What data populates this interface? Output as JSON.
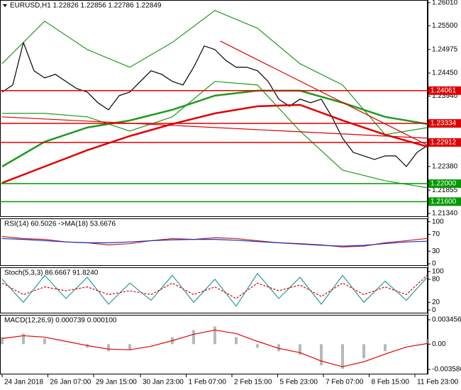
{
  "chart_data": [
    {
      "type": "line",
      "title": "EURUSD,H1 1.22826 1.22856 1.22786 1.22849",
      "xlim": [
        -0.2,
        40
      ],
      "ylim": [
        1.2126,
        1.2607
      ],
      "yticks": [
        {
          "value": 1.2601,
          "label": "1.26010"
        },
        {
          "value": 1.255,
          "label": "1.25500"
        },
        {
          "value": 1.24975,
          "label": "1.24975"
        },
        {
          "value": 1.2445,
          "label": "1.24450"
        },
        {
          "value": 1.2394,
          "label": "1.23940"
        },
        {
          "value": 1.2238,
          "label": "1.22380"
        },
        {
          "value": 1.21855,
          "label": "1.21855"
        },
        {
          "value": 1.2134,
          "label": "1.21340"
        }
      ],
      "series": [
        {
          "color": "#000000",
          "values": [
            1.24029,
            1.24186,
            1.25129,
            1.24501,
            1.24343,
            1.24422,
            1.24265,
            1.24108,
            1.24029,
            1.23793,
            1.23636,
            1.2395,
            1.24029,
            1.24265,
            1.24501,
            1.24422,
            1.24265,
            1.24186,
            1.24579,
            1.25051,
            1.24972,
            1.24736,
            1.24579,
            1.24579,
            1.24501,
            1.24265,
            1.23872,
            1.23714,
            1.23872,
            1.23793,
            1.23872,
            1.23479,
            1.23007,
            1.22692,
            1.22614,
            1.22535,
            1.22614,
            1.22614,
            1.22378,
            1.22692,
            1.22849
          ]
        },
        {
          "color": "#1f9a1f",
          "x": [
            0,
            4,
            8,
            12,
            16,
            20,
            24,
            28,
            32,
            36,
            40
          ],
          "values": [
            1.24658,
            1.25601,
            1.24972,
            1.24579,
            1.2513,
            1.25837,
            1.25444,
            1.24658,
            1.24186,
            1.23085,
            1.23243
          ]
        },
        {
          "color": "#1f9a1f",
          "x": [
            0,
            4,
            8,
            12,
            16,
            20,
            24,
            28,
            32,
            36,
            40
          ],
          "values": [
            1.23557,
            1.23557,
            1.23479,
            1.23164,
            1.23479,
            1.24265,
            1.24186,
            1.23164,
            1.22299,
            1.22063,
            1.21906
          ]
        },
        {
          "color": "#1f9a1f",
          "thick": true,
          "x": [
            0,
            4,
            8,
            12,
            16,
            20,
            24,
            28,
            32,
            36,
            40
          ],
          "values": [
            1.22378,
            1.22928,
            1.23243,
            1.234,
            1.23636,
            1.2395,
            1.2406,
            1.2406,
            1.23793,
            1.23479,
            1.23321
          ]
        },
        {
          "color": "#e00000",
          "thick": true,
          "x": [
            0,
            4,
            8,
            12,
            16,
            20,
            24,
            28,
            32,
            36,
            40
          ],
          "values": [
            1.22016,
            1.22378,
            1.2274,
            1.23054,
            1.23321,
            1.23557,
            1.23714,
            1.23746,
            1.234,
            1.23085,
            1.22818
          ]
        },
        {
          "color": "#e00000",
          "x": [
            20.5,
            40
          ],
          "values": [
            1.25161,
            1.2285
          ]
        },
        {
          "color": "#e00000",
          "x": [
            0,
            40
          ],
          "values": [
            1.23479,
            1.23007
          ]
        }
      ],
      "levels": [
        {
          "value": 1.24061,
          "label": "1.24061",
          "color": "#e00000"
        },
        {
          "value": 1.23334,
          "label": "1.23334",
          "color": "#e00000"
        },
        {
          "value": 1.22912,
          "label": "1.22912",
          "color": "#e00000"
        },
        {
          "value": 1.22,
          "label": "1.22000",
          "color": "#009900"
        },
        {
          "value": 1.216,
          "label": "1.21600",
          "color": "#009900"
        }
      ]
    },
    {
      "type": "line",
      "title": "RSI(14) 60.5026 ->MA(18) 53.6676",
      "xlim": [
        -0.1,
        20
      ],
      "ylim": [
        -5,
        108
      ],
      "yticks": [
        100,
        70,
        30,
        0
      ],
      "series": [
        {
          "color": "#c02020",
          "values": [
            65,
            60,
            58,
            52,
            50,
            45,
            48,
            55,
            60,
            58,
            62,
            60,
            55,
            50,
            48,
            45,
            40,
            42,
            50,
            55,
            60.5026
          ]
        },
        {
          "color": "#2030c0",
          "values": [
            60,
            58,
            55,
            52,
            50,
            50,
            52,
            55,
            57,
            58,
            58,
            56,
            53,
            50,
            47,
            44,
            42,
            44,
            48,
            52,
            53.6676
          ]
        }
      ]
    },
    {
      "type": "line",
      "title": "Stoch(5,3,3) 86.6667 91.8240",
      "xlim": [
        -0.1,
        20
      ],
      "ylim": [
        -9,
        111
      ],
      "yticks": [
        100,
        80,
        20,
        0
      ],
      "series": [
        {
          "color": "#2a9a9a",
          "values": [
            80,
            20,
            90,
            30,
            85,
            15,
            70,
            25,
            90,
            20,
            80,
            10,
            95,
            30,
            85,
            15,
            90,
            20,
            75,
            25,
            86.6667
          ]
        },
        {
          "color": "#e00000",
          "dash": true,
          "values": [
            70,
            40,
            60,
            50,
            60,
            40,
            50,
            40,
            70,
            40,
            60,
            30,
            70,
            50,
            65,
            35,
            70,
            40,
            60,
            40,
            91.824
          ]
        }
      ]
    },
    {
      "type": "line",
      "title": "MACD(12,26,9) 0.000739 0.000100",
      "xlim": [
        -0.1,
        20
      ],
      "ylim": [
        -0.00429,
        0.00416
      ],
      "yticks": [
        0.003456,
        {
          "value": 0,
          "label": "0.00"
        },
        -0.003586
      ],
      "xticks": [
        {
          "value": 0,
          "label": "24 Jan 2018"
        },
        {
          "value": 2.15,
          "label": "26 Jan 07:00"
        },
        {
          "value": 4.3,
          "label": "29 Jan 15:00"
        },
        {
          "value": 6.5,
          "label": "30 Jan 23:00"
        },
        {
          "value": 8.65,
          "label": "1 Feb 07:00"
        },
        {
          "value": 10.8,
          "label": "2 Feb 15:00"
        },
        {
          "value": 12.95,
          "label": "5 Feb 23:00"
        },
        {
          "value": 15.1,
          "label": "7 Feb 07:00"
        },
        {
          "value": 17.25,
          "label": "8 Feb 15:00"
        },
        {
          "value": 19.4,
          "label": "11 Feb 23:00"
        }
      ],
      "series": [
        {
          "type": "bar",
          "color": "#b8b8b8",
          "values": [
            0.001,
            0.0015,
            0.0008,
            0,
            -0.0005,
            -0.001,
            -0.0008,
            0,
            0.001,
            0.002,
            0.0025,
            0.001,
            -0.0005,
            -0.001,
            -0.0015,
            -0.003,
            -0.0035,
            -0.002,
            -0.001,
            0,
            0.000739
          ]
        },
        {
          "color": "#e00000",
          "values": [
            0.0008,
            0.0012,
            0.001,
            0.0004,
            -0.0002,
            -0.0007,
            -0.0008,
            -0.0003,
            0.0005,
            0.0014,
            0.002,
            0.0015,
            0.0004,
            -0.0006,
            -0.0012,
            -0.0024,
            -0.0032,
            -0.0025,
            -0.0014,
            -0.0004,
            0.0001
          ]
        }
      ]
    }
  ]
}
